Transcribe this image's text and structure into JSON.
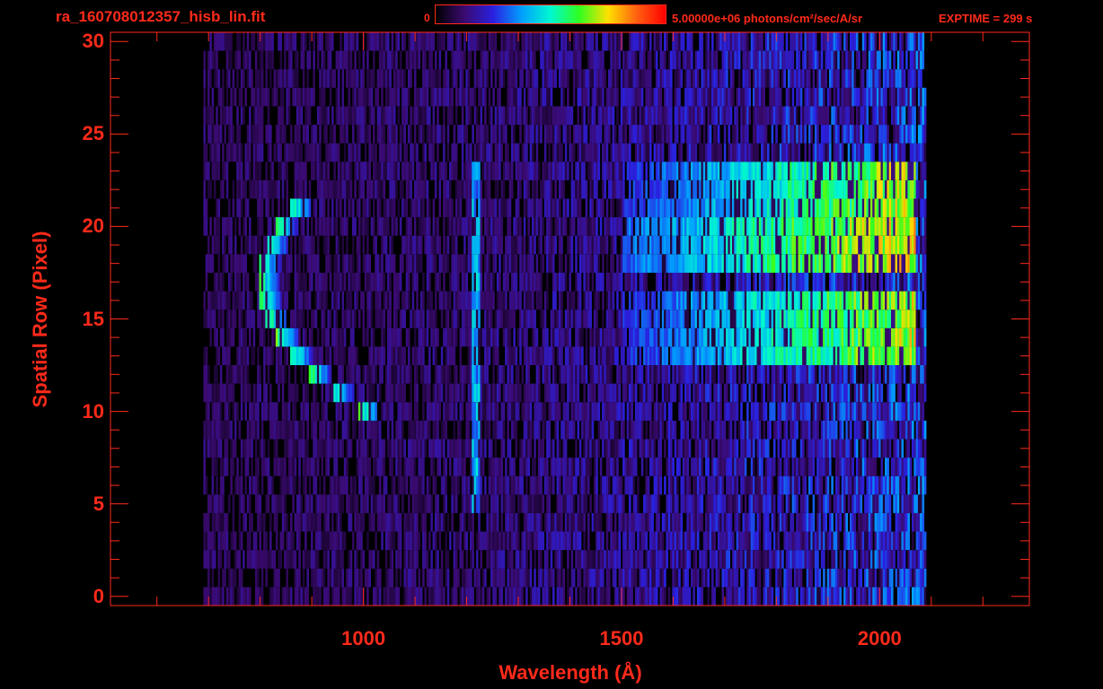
{
  "header": {
    "file_title": "ra_160708012357_hisb_lin.fit",
    "colorbar_min": "0",
    "colorbar_max": "5.00000e+06 photons/cm²/sec/A/sr",
    "exptime": "EXPTIME = 299 s"
  },
  "colors": {
    "axis": "#ff2a1a",
    "background": "#000000",
    "colormap": [
      "#000000",
      "#3a0a70",
      "#2a20e0",
      "#00a0ff",
      "#00f8d0",
      "#30ff20",
      "#ffe000",
      "#ff6010",
      "#ff0000"
    ]
  },
  "chart_data": {
    "type": "heatmap",
    "xlabel": "Wavelength (Å)",
    "ylabel": "Spatial Row (Pixel)",
    "xlim": [
      510,
      2290
    ],
    "ylim": [
      -0.5,
      30.5
    ],
    "xticks": [
      1000,
      1500,
      2000
    ],
    "yticks": [
      0,
      5,
      10,
      15,
      20,
      25,
      30
    ],
    "colorbar_range": [
      0,
      5000000
    ],
    "grid": false,
    "rows": 31,
    "wavelength_range": [
      690,
      2090
    ],
    "features": [
      {
        "label": "",
        "center": 860,
        "rows": [
          10,
          21
        ],
        "peak_level": 0.7
      },
      {
        "label": "",
        "center": 1216,
        "rows": [
          5,
          23
        ],
        "peak_level": 0.45
      },
      {
        "label": "",
        "center": 1900,
        "rows": [
          13,
          23
        ],
        "peak_level": 0.72
      }
    ]
  }
}
